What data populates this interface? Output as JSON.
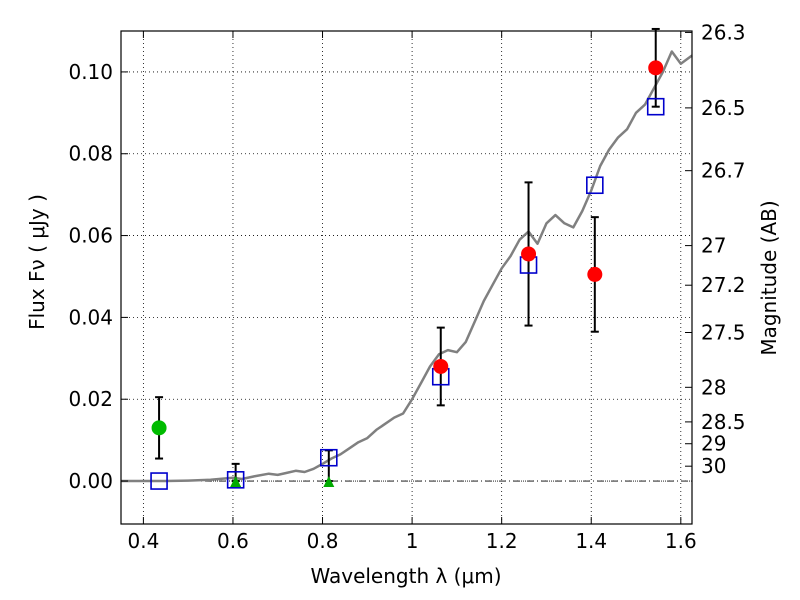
{
  "chart_data": {
    "type": "scatter",
    "xlabel": "Wavelength  λ (μm)",
    "ylabel": "Flux  Fν  ( μJy )",
    "ylabel_right": "Magnitude (AB)",
    "xlim": [
      0.35,
      1.625
    ],
    "ylim": [
      -0.0105,
      0.11
    ],
    "grid": true,
    "x_ticks": [
      {
        "value": 0.4,
        "label": "0.4"
      },
      {
        "value": 0.6,
        "label": "0.6"
      },
      {
        "value": 0.8,
        "label": "0.8"
      },
      {
        "value": 1.0,
        "label": "1"
      },
      {
        "value": 1.2,
        "label": "1.2"
      },
      {
        "value": 1.4,
        "label": "1.4"
      },
      {
        "value": 1.6,
        "label": "1.6"
      }
    ],
    "y_ticks": [
      {
        "value": 0.0,
        "label": "0.00"
      },
      {
        "value": 0.02,
        "label": "0.02"
      },
      {
        "value": 0.04,
        "label": "0.04"
      },
      {
        "value": 0.06,
        "label": "0.06"
      },
      {
        "value": 0.08,
        "label": "0.08"
      },
      {
        "value": 0.1,
        "label": "0.10"
      }
    ],
    "mag_ticks": [
      {
        "value": 26.3,
        "label": "26.3"
      },
      {
        "value": 26.5,
        "label": "26.5"
      },
      {
        "value": 26.7,
        "label": "26.7"
      },
      {
        "value": 27.0,
        "label": "27"
      },
      {
        "value": 27.2,
        "label": "27.2"
      },
      {
        "value": 27.5,
        "label": "27.5"
      },
      {
        "value": 28.0,
        "label": "28"
      },
      {
        "value": 28.5,
        "label": "28.5"
      },
      {
        "value": 29.0,
        "label": "29"
      },
      {
        "value": 30.0,
        "label": "30"
      }
    ],
    "colors": {
      "model": "#808080",
      "detection": "#ff0000",
      "blue_detection": "#00bb00",
      "upper_limit": "#00aa00",
      "model_flux": "#0000cc",
      "errorbar": "#000000"
    },
    "series": [
      {
        "name": "model spectrum",
        "style": "line",
        "x": [
          0.35,
          0.45,
          0.5,
          0.55,
          0.6,
          0.62,
          0.65,
          0.68,
          0.7,
          0.72,
          0.74,
          0.76,
          0.78,
          0.8,
          0.82,
          0.84,
          0.86,
          0.88,
          0.9,
          0.92,
          0.94,
          0.96,
          0.98,
          1.0,
          1.02,
          1.04,
          1.06,
          1.08,
          1.1,
          1.12,
          1.14,
          1.16,
          1.18,
          1.2,
          1.22,
          1.24,
          1.26,
          1.28,
          1.3,
          1.32,
          1.34,
          1.36,
          1.38,
          1.4,
          1.42,
          1.44,
          1.46,
          1.48,
          1.5,
          1.52,
          1.54,
          1.56,
          1.58,
          1.6,
          1.625
        ],
        "y": [
          0.0,
          0.0,
          0.0001,
          0.0003,
          0.0008,
          0.0005,
          0.0012,
          0.0018,
          0.0015,
          0.002,
          0.0025,
          0.0022,
          0.003,
          0.0042,
          0.0055,
          0.0065,
          0.008,
          0.0095,
          0.0105,
          0.0125,
          0.014,
          0.0155,
          0.0165,
          0.02,
          0.024,
          0.028,
          0.031,
          0.032,
          0.0315,
          0.034,
          0.039,
          0.044,
          0.048,
          0.052,
          0.055,
          0.059,
          0.061,
          0.058,
          0.063,
          0.065,
          0.063,
          0.062,
          0.066,
          0.071,
          0.077,
          0.081,
          0.084,
          0.086,
          0.09,
          0.092,
          0.096,
          0.1,
          0.105,
          0.102,
          0.104
        ]
      },
      {
        "name": "model fluxes",
        "style": "open-square",
        "x": [
          0.435,
          0.606,
          0.814,
          1.064,
          1.26,
          1.408,
          1.544
        ],
        "y": [
          0.0,
          0.0003,
          0.0057,
          0.0255,
          0.0528,
          0.0723,
          0.0915
        ]
      },
      {
        "name": "detections",
        "style": "filled-circle",
        "x": [
          1.064,
          1.26,
          1.408,
          1.544
        ],
        "y": [
          0.028,
          0.0555,
          0.0505,
          0.101
        ],
        "yerr": [
          0.0095,
          0.0175,
          0.014,
          0.0095
        ]
      },
      {
        "name": "green detection",
        "style": "green-circle",
        "x": [
          0.435
        ],
        "y": [
          0.013
        ],
        "yerr": [
          0.0075
        ]
      },
      {
        "name": "upper limits",
        "style": "triangle",
        "x": [
          0.606,
          0.814
        ],
        "y": [
          0.0,
          0.0
        ],
        "err_top": [
          0.0042,
          0.0075
        ]
      }
    ]
  }
}
